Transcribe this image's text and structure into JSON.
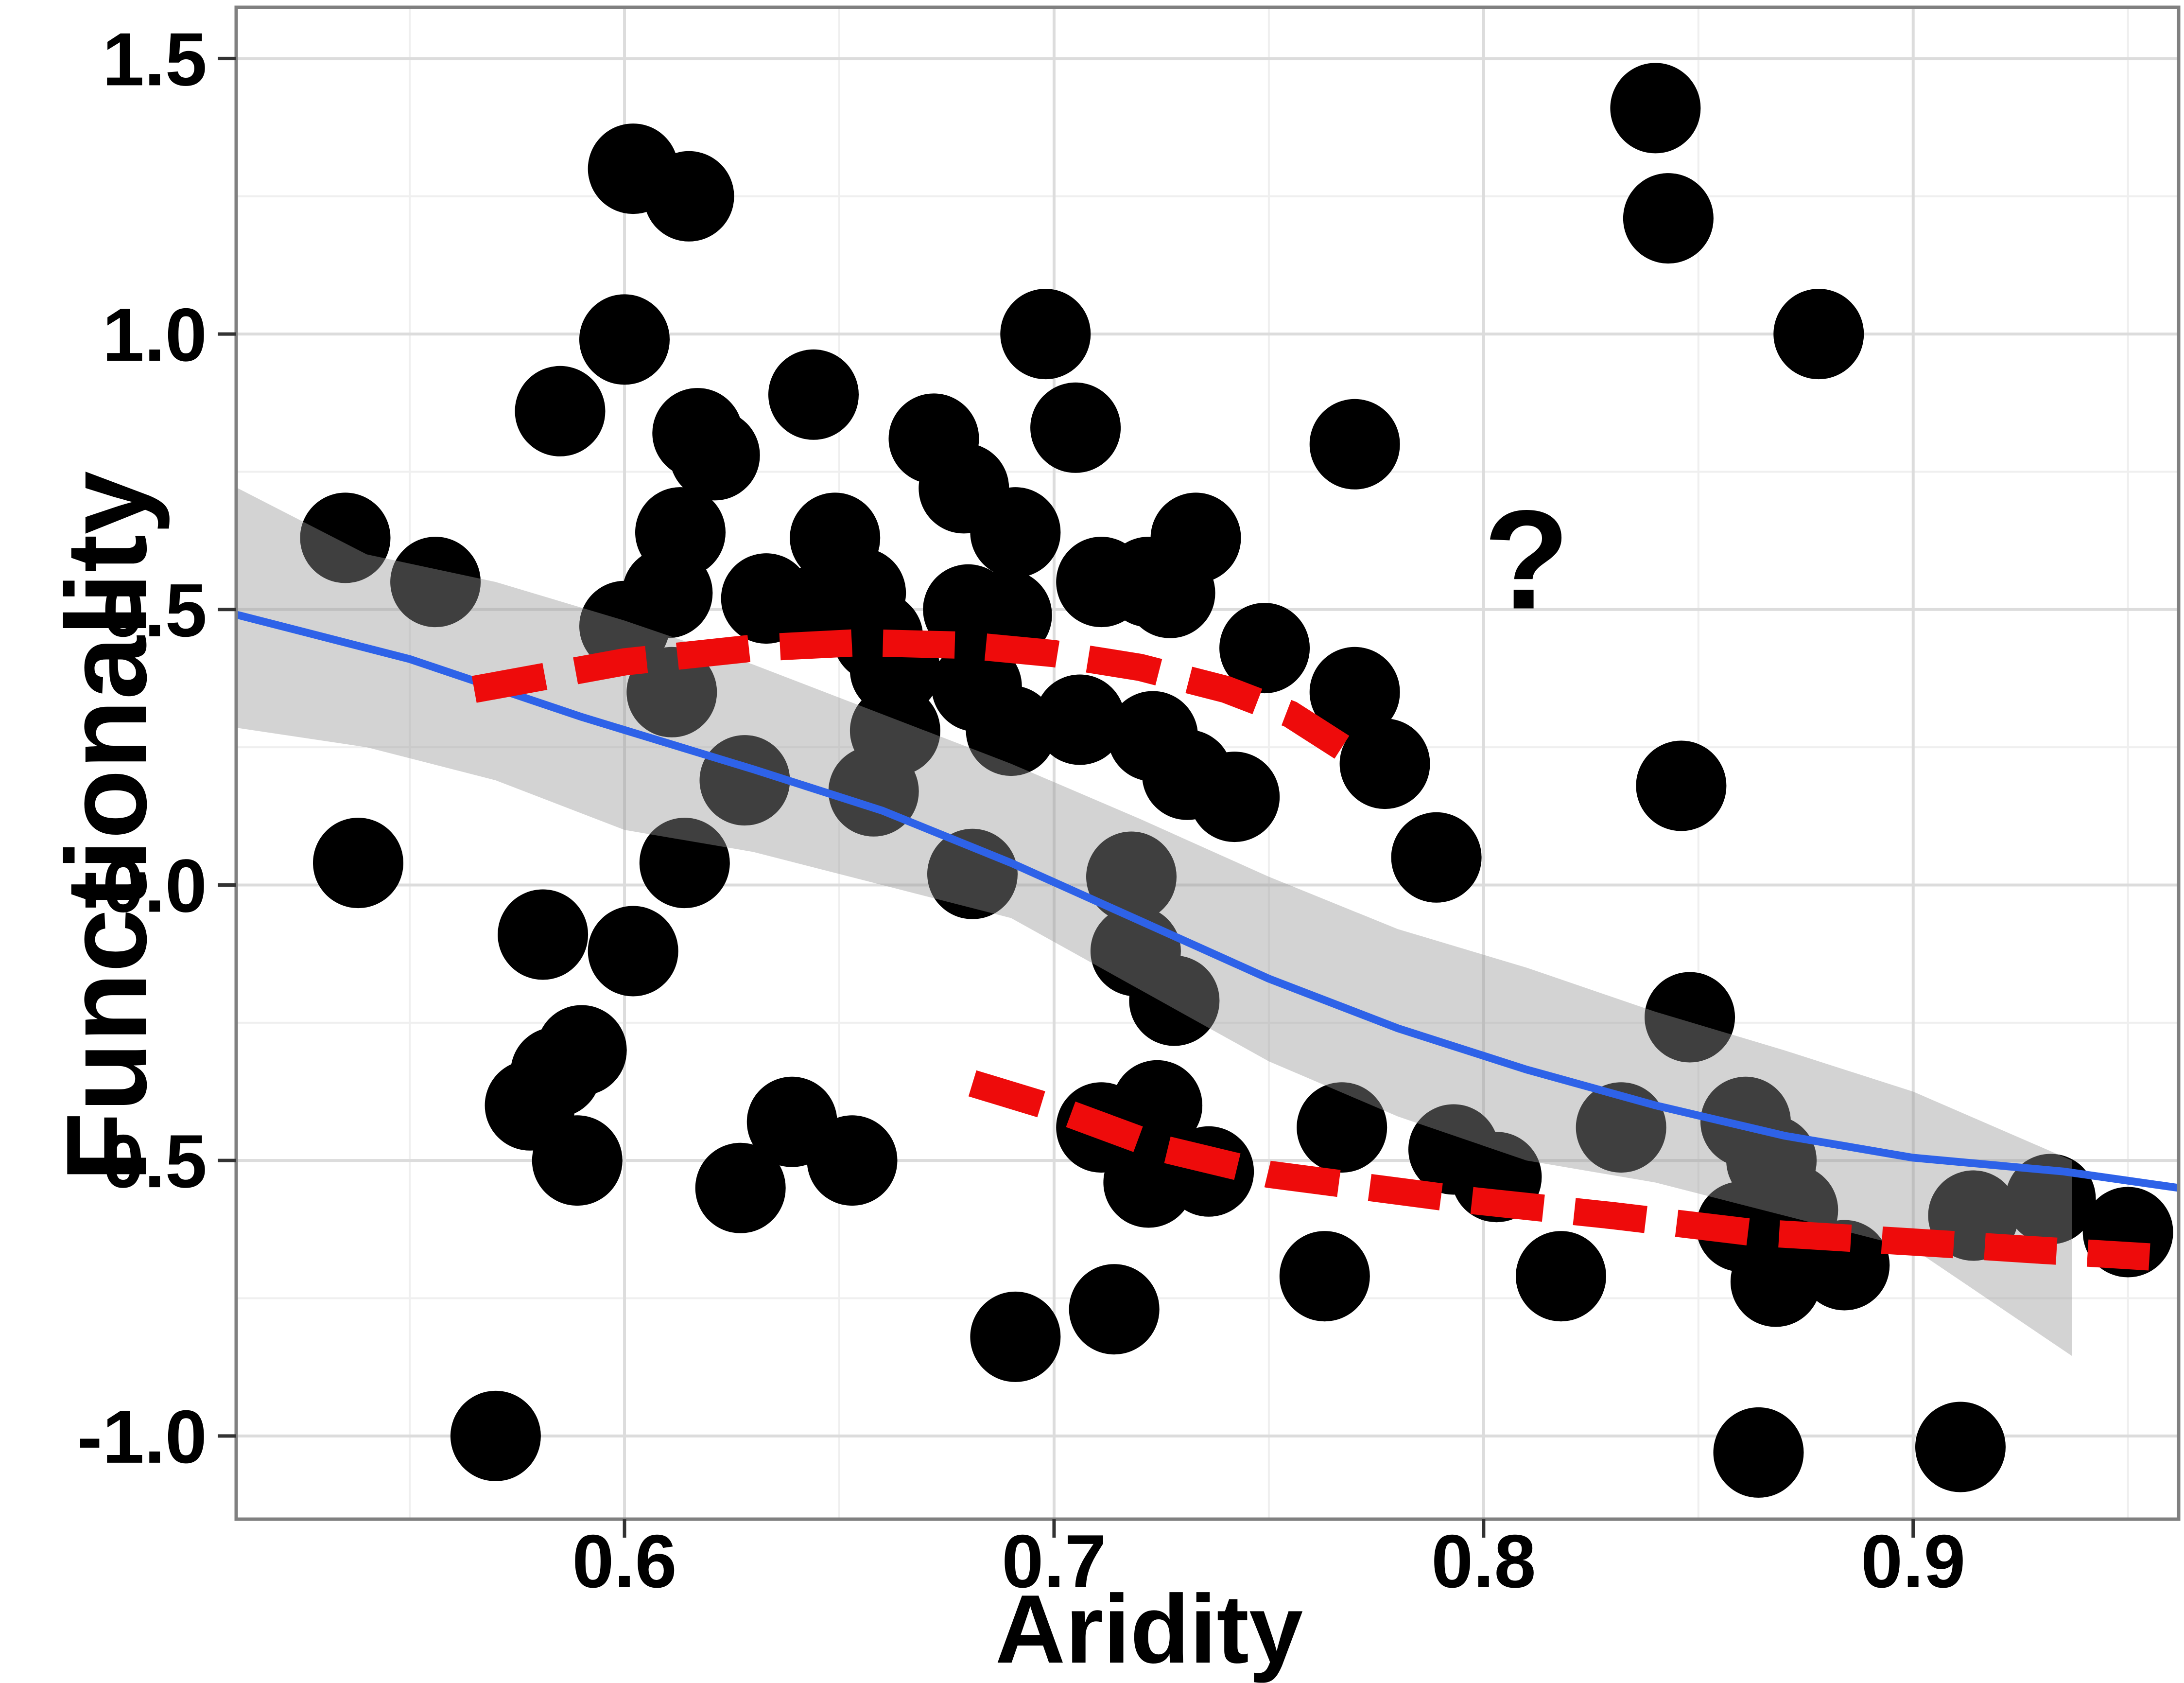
{
  "chart_data": {
    "type": "scatter",
    "title": "",
    "xlabel": "Aridity",
    "ylabel": "Functionality",
    "x_axis": {
      "range": [
        0.5096,
        0.9618
      ],
      "ticks": [
        {
          "v": 0.6,
          "label": "0.6"
        },
        {
          "v": 0.7,
          "label": "0.7"
        },
        {
          "v": 0.8,
          "label": "0.8"
        },
        {
          "v": 0.9,
          "label": "0.9"
        }
      ],
      "minor": [
        0.55,
        0.65,
        0.75,
        0.85,
        0.95
      ]
    },
    "y_axis": {
      "range": [
        -1.151,
        1.593
      ],
      "ticks": [
        {
          "v": 1.5,
          "label": "1.5"
        },
        {
          "v": 1.0,
          "label": "1.0"
        },
        {
          "v": 0.5,
          "label": "0.5"
        },
        {
          "v": 0.0,
          "label": "0.0"
        },
        {
          "v": -0.5,
          "label": "-0.5"
        },
        {
          "v": -1.0,
          "label": "-1.0"
        }
      ],
      "minor": [
        1.25,
        0.75,
        0.25,
        -0.25,
        -0.75
      ]
    },
    "points": [
      [
        0.535,
        0.63
      ],
      [
        0.538,
        0.04
      ],
      [
        0.556,
        0.55
      ],
      [
        0.57,
        -1.0
      ],
      [
        0.602,
        1.3
      ],
      [
        0.615,
        1.25
      ],
      [
        0.6,
        0.99
      ],
      [
        0.585,
        0.86
      ],
      [
        0.617,
        0.82
      ],
      [
        0.621,
        0.78
      ],
      [
        0.644,
        0.89
      ],
      [
        0.613,
        0.64
      ],
      [
        0.61,
        0.53
      ],
      [
        0.633,
        0.52
      ],
      [
        0.645,
        0.5
      ],
      [
        0.649,
        0.63
      ],
      [
        0.655,
        0.53
      ],
      [
        0.6,
        0.47
      ],
      [
        0.611,
        0.35
      ],
      [
        0.628,
        0.19
      ],
      [
        0.658,
        0.17
      ],
      [
        0.663,
        0.28
      ],
      [
        0.581,
        -0.09
      ],
      [
        0.602,
        -0.12
      ],
      [
        0.59,
        -0.3
      ],
      [
        0.584,
        -0.34
      ],
      [
        0.578,
        -0.4
      ],
      [
        0.589,
        -0.5
      ],
      [
        0.614,
        0.04
      ],
      [
        0.627,
        -0.55
      ],
      [
        0.639,
        -0.43
      ],
      [
        0.653,
        -0.5
      ],
      [
        0.659,
        0.45
      ],
      [
        0.663,
        0.39
      ],
      [
        0.672,
        0.81
      ],
      [
        0.679,
        0.72
      ],
      [
        0.691,
        0.64
      ],
      [
        0.698,
        1.0
      ],
      [
        0.705,
        0.83
      ],
      [
        0.68,
        0.5
      ],
      [
        0.689,
        0.49
      ],
      [
        0.682,
        0.36
      ],
      [
        0.69,
        0.28
      ],
      [
        0.706,
        0.3
      ],
      [
        0.723,
        0.27
      ],
      [
        0.711,
        0.55
      ],
      [
        0.722,
        0.55
      ],
      [
        0.727,
        0.53
      ],
      [
        0.733,
        0.63
      ],
      [
        0.749,
        0.43
      ],
      [
        0.731,
        0.2
      ],
      [
        0.742,
        0.16
      ],
      [
        0.718,
        0.015
      ],
      [
        0.719,
        -0.12
      ],
      [
        0.728,
        -0.21
      ],
      [
        0.681,
        0.02
      ],
      [
        0.691,
        -0.82
      ],
      [
        0.714,
        -0.77
      ],
      [
        0.711,
        -0.44
      ],
      [
        0.724,
        -0.4
      ],
      [
        0.722,
        -0.54
      ],
      [
        0.736,
        -0.52
      ],
      [
        0.77,
        0.35
      ],
      [
        0.777,
        0.22
      ],
      [
        0.77,
        0.8
      ],
      [
        0.789,
        0.05
      ],
      [
        0.767,
        -0.44
      ],
      [
        0.763,
        -0.71
      ],
      [
        0.793,
        -0.48
      ],
      [
        0.803,
        -0.53
      ],
      [
        0.818,
        -0.71
      ],
      [
        0.846,
        0.18
      ],
      [
        0.84,
        1.41
      ],
      [
        0.843,
        1.21
      ],
      [
        0.832,
        -0.44
      ],
      [
        0.848,
        -0.24
      ],
      [
        0.86,
        -0.62
      ],
      [
        0.878,
        1.0
      ],
      [
        0.861,
        -0.43
      ],
      [
        0.867,
        -0.5
      ],
      [
        0.872,
        -0.59
      ],
      [
        0.868,
        -0.72
      ],
      [
        0.884,
        -0.69
      ],
      [
        0.864,
        -1.03
      ],
      [
        0.911,
        -1.02
      ],
      [
        0.914,
        -0.6
      ],
      [
        0.932,
        -0.57
      ],
      [
        0.95,
        -0.63
      ]
    ],
    "regression_line": {
      "label": "blue-loess-fit",
      "points": [
        [
          0.51,
          0.49
        ],
        [
          0.55,
          0.41
        ],
        [
          0.59,
          0.305
        ],
        [
          0.63,
          0.21
        ],
        [
          0.66,
          0.135
        ],
        [
          0.69,
          0.04
        ],
        [
          0.72,
          -0.065
        ],
        [
          0.75,
          -0.17
        ],
        [
          0.78,
          -0.26
        ],
        [
          0.81,
          -0.335
        ],
        [
          0.84,
          -0.4
        ],
        [
          0.87,
          -0.455
        ],
        [
          0.9,
          -0.495
        ],
        [
          0.935,
          -0.52
        ],
        [
          0.962,
          -0.55
        ]
      ]
    },
    "confidence_band": {
      "upper": [
        [
          0.51,
          0.72
        ],
        [
          0.54,
          0.6
        ],
        [
          0.57,
          0.55
        ],
        [
          0.6,
          0.48
        ],
        [
          0.63,
          0.4
        ],
        [
          0.66,
          0.31
        ],
        [
          0.69,
          0.22
        ],
        [
          0.72,
          0.12
        ],
        [
          0.75,
          0.015
        ],
        [
          0.78,
          -0.08
        ],
        [
          0.81,
          -0.15
        ],
        [
          0.84,
          -0.23
        ],
        [
          0.87,
          -0.3
        ],
        [
          0.9,
          -0.375
        ],
        [
          0.937,
          -0.5
        ]
      ],
      "lower": [
        [
          0.51,
          0.285
        ],
        [
          0.54,
          0.25
        ],
        [
          0.57,
          0.19
        ],
        [
          0.6,
          0.1
        ],
        [
          0.63,
          0.06
        ],
        [
          0.66,
          0.0
        ],
        [
          0.69,
          -0.06
        ],
        [
          0.72,
          -0.19
        ],
        [
          0.75,
          -0.32
        ],
        [
          0.78,
          -0.42
        ],
        [
          0.81,
          -0.5
        ],
        [
          0.84,
          -0.54
        ],
        [
          0.87,
          -0.6
        ],
        [
          0.9,
          -0.66
        ],
        [
          0.937,
          -0.855
        ]
      ]
    },
    "dashed_curves": [
      {
        "label": "upper-red-dashed-curve",
        "points": [
          [
            0.565,
            0.355
          ],
          [
            0.6,
            0.405
          ],
          [
            0.63,
            0.43
          ],
          [
            0.655,
            0.44
          ],
          [
            0.68,
            0.435
          ],
          [
            0.7,
            0.42
          ],
          [
            0.72,
            0.395
          ],
          [
            0.74,
            0.355
          ],
          [
            0.755,
            0.31
          ],
          [
            0.767,
            0.25
          ]
        ]
      },
      {
        "label": "lower-red-dashed-curve",
        "points": [
          [
            0.681,
            -0.36
          ],
          [
            0.7,
            -0.405
          ],
          [
            0.726,
            -0.48
          ],
          [
            0.75,
            -0.525
          ],
          [
            0.794,
            -0.57
          ],
          [
            0.83,
            -0.6
          ],
          [
            0.862,
            -0.63
          ],
          [
            0.9,
            -0.648
          ],
          [
            0.93,
            -0.663
          ],
          [
            0.955,
            -0.675
          ]
        ]
      }
    ],
    "annotation": {
      "text": "?",
      "x": 0.81,
      "y": 0.502
    },
    "style": {
      "point_color": "#000000",
      "point_radius_px": 93,
      "line_color": "#2e62e8",
      "band_color": "rgba(150,150,150,0.42)",
      "dash_color": "#ee0b0b",
      "grid_major": "#dcdcdc",
      "grid_minor": "#efefef",
      "panel_border": "#808080",
      "text_color": "#000000"
    }
  }
}
